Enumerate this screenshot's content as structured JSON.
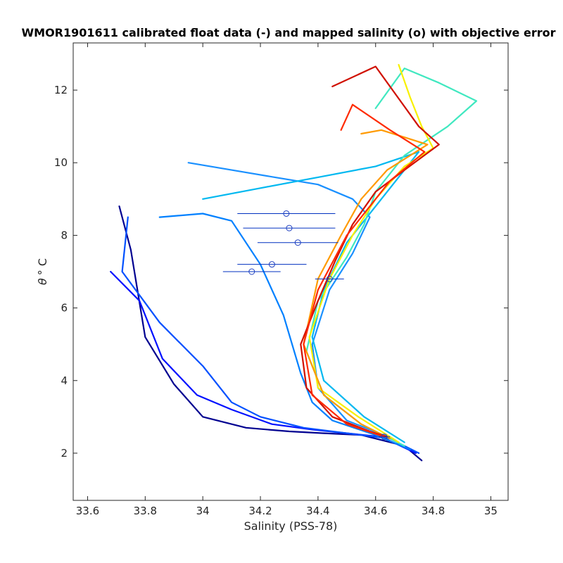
{
  "chart_data": {
    "type": "line",
    "title": "WMOR1901611 calibrated float data (-) and mapped salinity (o) with objective error",
    "xlabel": "Salinity (PSS-78)",
    "ylabel_symbol": "θ",
    "ylabel_unit": "° C",
    "xlim": [
      33.55,
      35.06
    ],
    "ylim": [
      0.7,
      13.3
    ],
    "x_ticks": [
      33.6,
      33.8,
      34,
      34.2,
      34.4,
      34.6,
      34.8,
      35
    ],
    "x_tick_labels": [
      "33.6",
      "33.8",
      "34",
      "34.2",
      "34.4",
      "34.6",
      "34.8",
      "35"
    ],
    "y_ticks": [
      2,
      4,
      6,
      8,
      10,
      12
    ],
    "y_tick_labels": [
      "2",
      "4",
      "6",
      "8",
      "10",
      "12"
    ],
    "grid": false,
    "legend": "none",
    "colormap": "jet",
    "series": [
      {
        "color": "#000090",
        "x": [
          33.71,
          33.75,
          33.8,
          33.9,
          34.0,
          34.15,
          34.3,
          34.42,
          34.55,
          34.7,
          34.76
        ],
        "y": [
          8.8,
          7.6,
          5.2,
          3.9,
          3.0,
          2.7,
          2.6,
          2.55,
          2.5,
          2.2,
          1.8
        ]
      },
      {
        "color": "#0010ff",
        "x": [
          33.68,
          33.78,
          33.86,
          33.98,
          34.1,
          34.24,
          34.38,
          34.5,
          34.62,
          34.74
        ],
        "y": [
          7.0,
          6.2,
          4.6,
          3.6,
          3.2,
          2.8,
          2.65,
          2.55,
          2.45,
          2.0
        ]
      },
      {
        "color": "#0050ff",
        "x": [
          33.74,
          33.72,
          33.85,
          34.0,
          34.1,
          34.2,
          34.35,
          34.5,
          34.65,
          34.75
        ],
        "y": [
          8.5,
          7.0,
          5.6,
          4.4,
          3.4,
          3.0,
          2.7,
          2.55,
          2.4,
          2.0
        ]
      },
      {
        "color": "#0080ff",
        "x": [
          33.85,
          34.0,
          34.1,
          34.2,
          34.28,
          34.34,
          34.38,
          34.45,
          34.6,
          34.72
        ],
        "y": [
          8.5,
          8.6,
          8.4,
          7.2,
          5.8,
          4.2,
          3.4,
          2.9,
          2.5,
          2.1
        ]
      },
      {
        "color": "#1a90ff",
        "x": [
          33.95,
          34.1,
          34.25,
          34.4,
          34.52,
          34.58,
          34.52,
          34.44,
          34.38,
          34.4,
          34.5,
          34.66
        ],
        "y": [
          10.0,
          9.8,
          9.6,
          9.4,
          9.0,
          8.5,
          7.5,
          6.5,
          5.0,
          3.8,
          2.9,
          2.4
        ]
      },
      {
        "color": "#00b8f0",
        "x": [
          34.0,
          34.2,
          34.4,
          34.6,
          34.75,
          34.62,
          34.5,
          34.42,
          34.38,
          34.42,
          34.56,
          34.7
        ],
        "y": [
          9.0,
          9.3,
          9.6,
          9.9,
          10.3,
          9.0,
          7.8,
          6.5,
          5.2,
          4.0,
          3.0,
          2.3
        ]
      },
      {
        "color": "#40e8c0",
        "x": [
          34.6,
          34.7,
          34.82,
          34.95,
          34.85,
          34.7,
          34.6,
          34.56,
          34.5,
          34.4,
          34.36,
          34.42,
          34.55,
          34.7
        ],
        "y": [
          11.5,
          12.6,
          12.2,
          11.7,
          11.0,
          10.2,
          9.2,
          8.3,
          7.4,
          6.2,
          4.8,
          3.6,
          2.8,
          2.2
        ]
      },
      {
        "color": "#f8f000",
        "x": [
          34.68,
          34.72,
          34.76,
          34.8,
          34.7,
          34.6,
          34.52,
          34.44,
          34.37,
          34.4,
          34.54,
          34.68
        ],
        "y": [
          12.7,
          11.8,
          11.0,
          10.4,
          9.9,
          9.0,
          8.0,
          6.8,
          5.2,
          3.8,
          3.0,
          2.3
        ]
      },
      {
        "color": "#ff9a00",
        "x": [
          34.55,
          34.62,
          34.7,
          34.78,
          34.64,
          34.55,
          34.48,
          34.4,
          34.35,
          34.42,
          34.55,
          34.65
        ],
        "y": [
          10.8,
          10.9,
          10.7,
          10.5,
          9.8,
          9.0,
          8.0,
          6.8,
          5.0,
          3.6,
          2.8,
          2.4
        ]
      },
      {
        "color": "#d01000",
        "x": [
          34.45,
          34.6,
          34.75,
          34.82,
          34.7,
          34.6,
          34.52,
          34.46,
          34.4,
          34.34,
          34.36,
          34.45,
          34.58,
          34.64
        ],
        "y": [
          12.1,
          12.65,
          11.0,
          10.5,
          9.8,
          9.2,
          8.3,
          7.3,
          6.2,
          5.0,
          3.8,
          3.0,
          2.6,
          2.45
        ]
      },
      {
        "color": "#ff2a00",
        "x": [
          34.48,
          34.52,
          34.65,
          34.77,
          34.65,
          34.5,
          34.4,
          34.35,
          34.38,
          34.5,
          34.63
        ],
        "y": [
          10.9,
          11.6,
          10.9,
          10.3,
          9.5,
          8.0,
          6.5,
          5.0,
          3.6,
          2.8,
          2.45
        ]
      }
    ],
    "mapped_salinity": [
      {
        "x": 34.29,
        "y": 8.6,
        "err": 0.17
      },
      {
        "x": 34.3,
        "y": 8.2,
        "err": 0.16
      },
      {
        "x": 34.33,
        "y": 7.8,
        "err": 0.14
      },
      {
        "x": 34.24,
        "y": 7.2,
        "err": 0.12
      },
      {
        "x": 34.17,
        "y": 7.0,
        "err": 0.1
      },
      {
        "x": 34.44,
        "y": 6.8,
        "err": 0.05
      },
      {
        "x": 34.63,
        "y": 2.45,
        "err": 0.02
      }
    ]
  }
}
